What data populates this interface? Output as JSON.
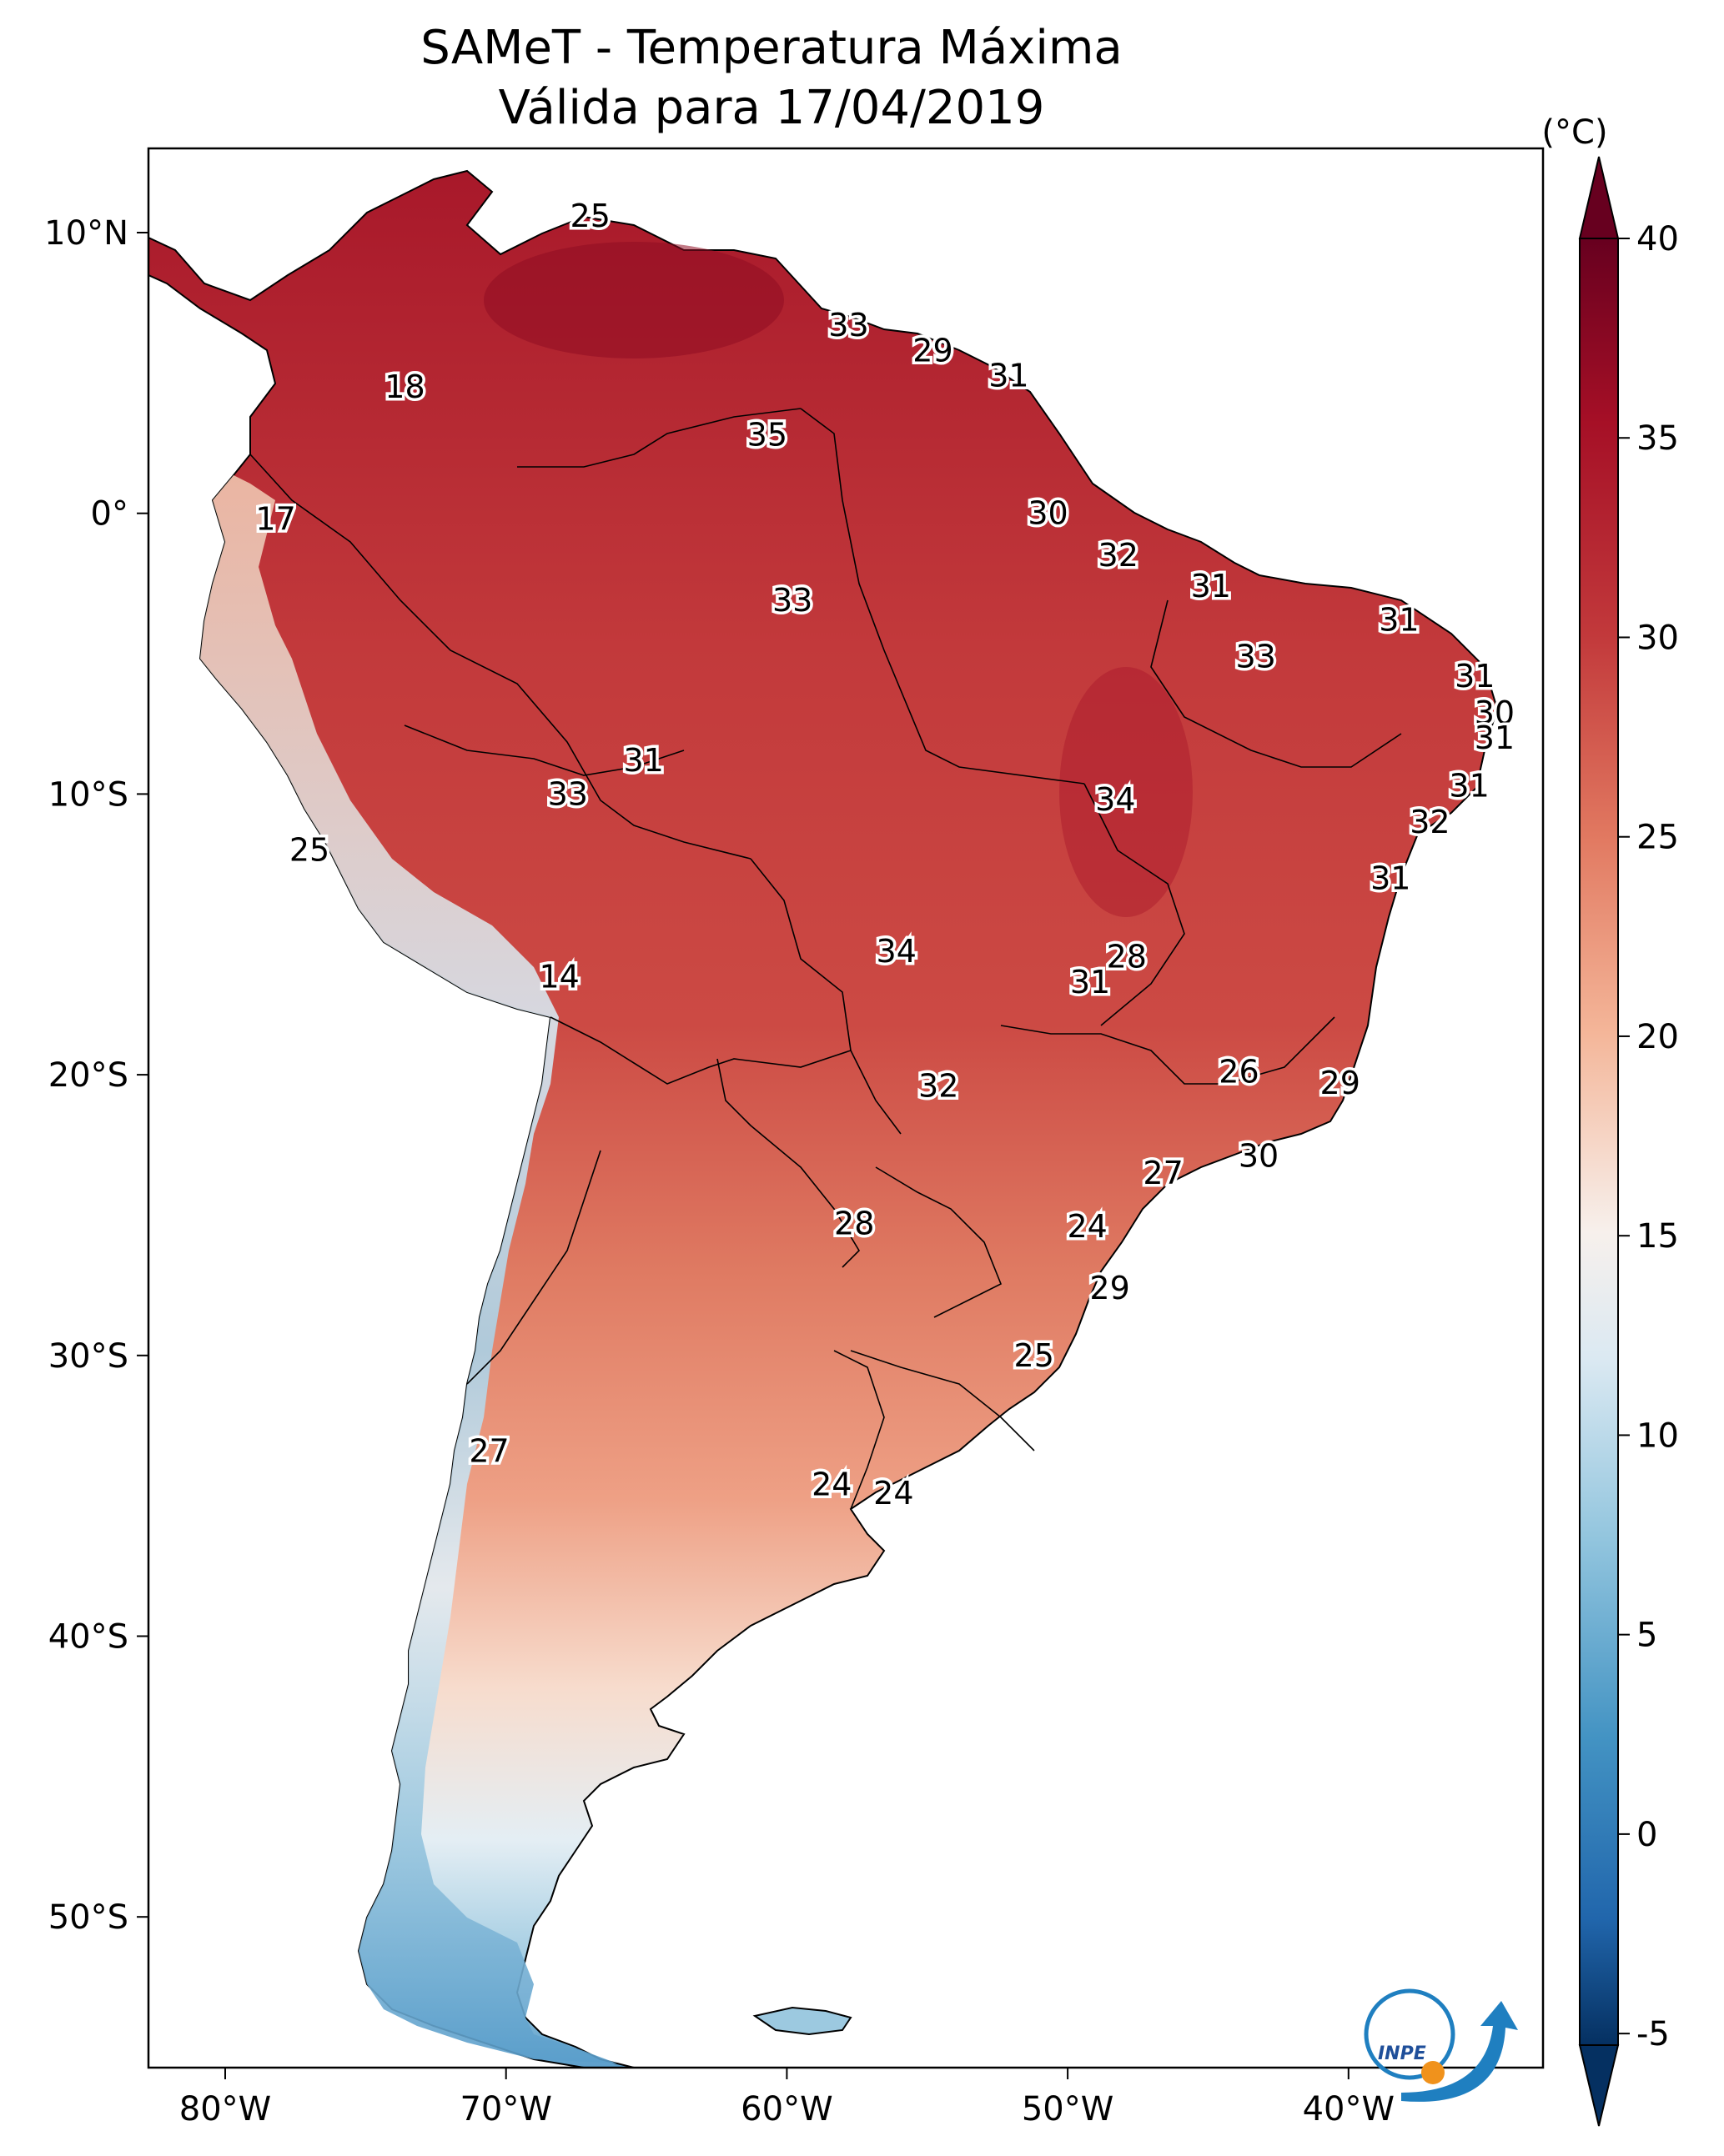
{
  "title": {
    "line1": "SAMeT - Temperatura Máxima",
    "line2": "Válida para 17/04/2019"
  },
  "axes": {
    "lon_labels": [
      "80°W",
      "70°W",
      "60°W",
      "50°W",
      "40°W"
    ],
    "lat_labels": [
      "10°N",
      "0°",
      "10°S",
      "20°S",
      "30°S",
      "40°S",
      "50°S"
    ]
  },
  "colorbar": {
    "unit": "(°C)",
    "ticks": [
      "40",
      "35",
      "30",
      "25",
      "20",
      "15",
      "10",
      "5",
      "0",
      "-5"
    ],
    "range": [
      -5,
      40
    ],
    "colors": {
      "max": "#67001f",
      "high": "#c2393b",
      "warm": "#f4a582",
      "neutral": "#f7f7f7",
      "cool": "#92c5de",
      "low": "#2166ac",
      "min": "#053061"
    }
  },
  "stations": [
    {
      "value": "25",
      "lon": -67.0,
      "lat": 10.6
    },
    {
      "value": "33",
      "lon": -57.8,
      "lat": 6.7
    },
    {
      "value": "29",
      "lon": -54.8,
      "lat": 5.8
    },
    {
      "value": "31",
      "lon": -52.1,
      "lat": 4.9
    },
    {
      "value": "18",
      "lon": -73.6,
      "lat": 4.5
    },
    {
      "value": "35",
      "lon": -60.7,
      "lat": 2.8
    },
    {
      "value": "17",
      "lon": -78.2,
      "lat": -0.2
    },
    {
      "value": "30",
      "lon": -50.7,
      "lat": 0.0
    },
    {
      "value": "32",
      "lon": -48.2,
      "lat": -1.5
    },
    {
      "value": "33",
      "lon": -59.8,
      "lat": -3.1
    },
    {
      "value": "31",
      "lon": -44.9,
      "lat": -2.6
    },
    {
      "value": "31",
      "lon": -38.2,
      "lat": -3.8
    },
    {
      "value": "33",
      "lon": -43.3,
      "lat": -5.1
    },
    {
      "value": "31",
      "lon": -35.5,
      "lat": -5.8
    },
    {
      "value": "30",
      "lon": -34.8,
      "lat": -7.1
    },
    {
      "value": "31",
      "lon": -34.8,
      "lat": -8.0
    },
    {
      "value": "31",
      "lon": -65.1,
      "lat": -8.8
    },
    {
      "value": "31",
      "lon": -35.7,
      "lat": -9.7
    },
    {
      "value": "33",
      "lon": -67.8,
      "lat": -10.0
    },
    {
      "value": "34",
      "lon": -48.3,
      "lat": -10.2
    },
    {
      "value": "32",
      "lon": -37.1,
      "lat": -11.0
    },
    {
      "value": "25",
      "lon": -77.0,
      "lat": -12.0
    },
    {
      "value": "31",
      "lon": -38.5,
      "lat": -13.0
    },
    {
      "value": "34",
      "lon": -56.1,
      "lat": -15.6
    },
    {
      "value": "28",
      "lon": -47.9,
      "lat": -15.8
    },
    {
      "value": "14",
      "lon": -68.1,
      "lat": -16.5
    },
    {
      "value": "31",
      "lon": -49.2,
      "lat": -16.7
    },
    {
      "value": "26",
      "lon": -43.9,
      "lat": -19.9
    },
    {
      "value": "29",
      "lon": -40.3,
      "lat": -20.3
    },
    {
      "value": "32",
      "lon": -54.6,
      "lat": -20.4
    },
    {
      "value": "30",
      "lon": -43.2,
      "lat": -22.9
    },
    {
      "value": "27",
      "lon": -46.6,
      "lat": -23.5
    },
    {
      "value": "28",
      "lon": -57.6,
      "lat": -25.3
    },
    {
      "value": "24",
      "lon": -49.3,
      "lat": -25.4
    },
    {
      "value": "29",
      "lon": -48.5,
      "lat": -27.6
    },
    {
      "value": "25",
      "lon": -51.2,
      "lat": -30.0
    },
    {
      "value": "27",
      "lon": -70.6,
      "lat": -33.4
    },
    {
      "value": "24",
      "lon": -58.4,
      "lat": -34.6
    },
    {
      "value": "24",
      "lon": -56.2,
      "lat": -34.9
    }
  ],
  "logo": {
    "text": "INPE"
  }
}
